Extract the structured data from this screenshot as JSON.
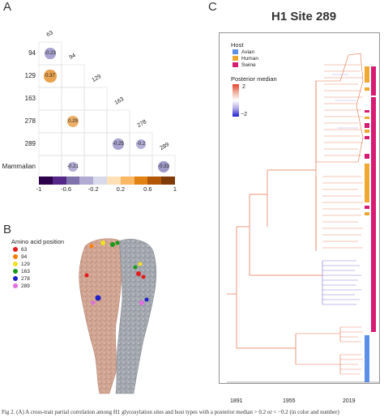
{
  "panel_a": {
    "letter": "A",
    "row_labels": [
      "94",
      "129",
      "163",
      "278",
      "289",
      "Mammalian"
    ],
    "col_labels": [
      "63",
      "94",
      "129",
      "163",
      "278",
      "289"
    ],
    "cells": [
      {
        "row": 0,
        "col": 0,
        "value": "-0.23",
        "color": "#a8a3d0"
      },
      {
        "row": 1,
        "col": 0,
        "value": "0.37",
        "color": "#e8a350"
      },
      {
        "row": 3,
        "col": 1,
        "value": "0.29",
        "color": "#eeb066"
      },
      {
        "row": 4,
        "col": 3,
        "value": "-0.25",
        "color": "#a8a3d0"
      },
      {
        "row": 4,
        "col": 4,
        "value": "-0.2",
        "color": "#b3aed6"
      },
      {
        "row": 5,
        "col": 1,
        "value": "-0.21",
        "color": "#b3aed6"
      },
      {
        "row": 5,
        "col": 5,
        "value": "-0.33",
        "color": "#a09ac9"
      }
    ],
    "colorbar": {
      "colors": [
        "#2d004b",
        "#542788",
        "#8073ac",
        "#b2abd2",
        "#d8daeb",
        "#fee0b6",
        "#fdb863",
        "#e08214",
        "#b35806",
        "#7f3b08"
      ],
      "ticks": [
        "-1",
        "-0.6",
        "-0.2",
        "0.2",
        "0.6",
        "1"
      ]
    }
  },
  "panel_b": {
    "letter": "B",
    "legend_title": "Amino acid position",
    "items": [
      {
        "label": "63",
        "color": "#e41a1c"
      },
      {
        "label": "94",
        "color": "#ff7f00"
      },
      {
        "label": "129",
        "color": "#f0e020"
      },
      {
        "label": "163",
        "color": "#1a9a1a"
      },
      {
        "label": "278",
        "color": "#2020c8"
      },
      {
        "label": "289",
        "color": "#e070e0"
      }
    ]
  },
  "panel_c": {
    "letter": "C",
    "title": "H1 Site 289",
    "host_legend": {
      "title": "Host",
      "items": [
        {
          "label": "Avian",
          "color": "#5b8fe8"
        },
        {
          "label": "Human",
          "color": "#f0a830"
        },
        {
          "label": "Swine",
          "color": "#d81b72"
        }
      ]
    },
    "posterior_legend": {
      "title": "Posterior median",
      "high": "2",
      "low": "−2",
      "colors": [
        "#e8402a",
        "#f0b0a0",
        "#ffffff",
        "#b0a8e8",
        "#2020d0"
      ]
    },
    "axis_ticks": [
      "1891",
      "1955",
      "2019"
    ]
  },
  "caption": "Fig 2.  (A) A cross-trait partial correlation among H1 glycosylation sites and host types with a posterior median > 0.2 or < −0.2 (in color and number)"
}
